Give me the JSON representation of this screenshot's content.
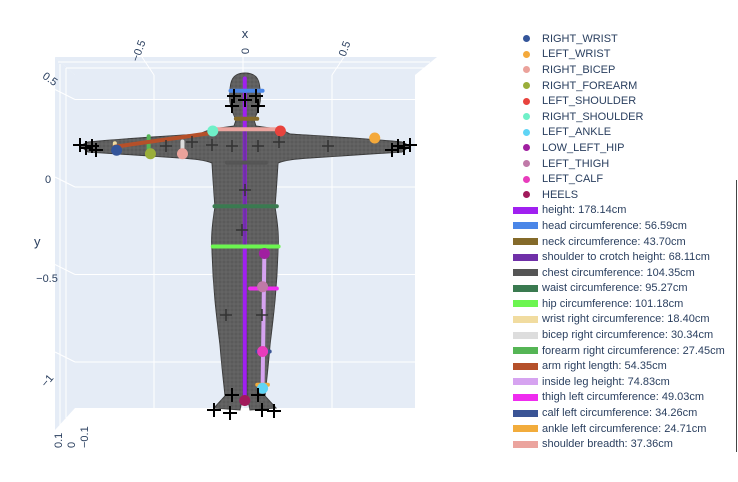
{
  "chart_data": {
    "type": "scatter3d",
    "axes": {
      "x": {
        "title": "x",
        "ticks": [
          "−0.5",
          "0",
          "0.5"
        ],
        "tick_values": [
          -0.5,
          0,
          0.5
        ]
      },
      "y": {
        "title": "y",
        "ticks": [
          "0.5",
          "0",
          "−0.5",
          "−1"
        ],
        "tick_values": [
          0.5,
          0,
          -0.5,
          -1
        ]
      },
      "z": {
        "title": "",
        "ticks": [
          "0.1",
          "0",
          "−0.1"
        ]
      }
    },
    "background_color": "#e5ecf6",
    "grid": true,
    "legend_placement": "right",
    "mesh_color": "#555555",
    "points": [
      {
        "name": "RIGHT_WRIST",
        "color": "#34559a",
        "x": -0.71,
        "y": 0.21
      },
      {
        "name": "LEFT_WRIST",
        "color": "#f4a93b",
        "x": 0.74,
        "y": 0.28
      },
      {
        "name": "RIGHT_BICEP",
        "color": "#eba29b",
        "x": -0.34,
        "y": 0.19
      },
      {
        "name": "RIGHT_FOREARM",
        "color": "#9aae3a",
        "x": -0.52,
        "y": 0.19
      },
      {
        "name": "LEFT_SHOULDER",
        "color": "#e8433d",
        "x": 0.21,
        "y": 0.32
      },
      {
        "name": "RIGHT_SHOULDER",
        "color": "#6ff0c8",
        "x": -0.17,
        "y": 0.32
      },
      {
        "name": "LEFT_ANKLE",
        "color": "#5fd4f5",
        "x": 0.11,
        "y": -1.15
      },
      {
        "name": "LOW_LEFT_HIP",
        "color": "#a01fa0",
        "x": 0.12,
        "y": -0.38
      },
      {
        "name": "LEFT_THIGH",
        "color": "#c079a8",
        "x": 0.11,
        "y": -0.57
      },
      {
        "name": "LEFT_CALF",
        "color": "#e83cbc",
        "x": 0.11,
        "y": -0.94
      },
      {
        "name": "HEELS",
        "color": "#a11a5b",
        "x": 0.01,
        "y": -1.22
      }
    ],
    "measurements": [
      {
        "name": "height: 178.14cm",
        "color": "#a020f0",
        "path": [
          [
            0.01,
            0.62
          ],
          [
            0.01,
            -1.22
          ]
        ]
      },
      {
        "name": "head circumference: 56.59cm",
        "color": "#4a86e8",
        "path": [
          [
            -0.07,
            0.55
          ],
          [
            0.11,
            0.55
          ]
        ]
      },
      {
        "name": "neck circumference: 43.70cm",
        "color": "#846a2a",
        "path": [
          [
            -0.04,
            0.39
          ],
          [
            0.08,
            0.39
          ]
        ]
      },
      {
        "name": "shoulder to crotch height: 68.11cm",
        "color": "#7030a8",
        "path": [
          [
            0.01,
            0.33
          ],
          [
            0.01,
            -0.33
          ]
        ]
      },
      {
        "name": "chest circumference: 104.35cm",
        "color": "#555555",
        "path": [
          [
            -0.09,
            0.14
          ],
          [
            0.13,
            0.14
          ]
        ]
      },
      {
        "name": "waist circumference: 95.27cm",
        "color": "#3a7a50",
        "path": [
          [
            -0.16,
            -0.11
          ],
          [
            0.19,
            -0.11
          ]
        ]
      },
      {
        "name": "hip circumference: 101.18cm",
        "color": "#6cf550",
        "path": [
          [
            -0.17,
            -0.34
          ],
          [
            0.2,
            -0.34
          ]
        ]
      },
      {
        "name": "wrist right circumference: 18.40cm",
        "color": "#f1dca0",
        "path": [
          [
            -0.72,
            0.25
          ],
          [
            -0.72,
            0.2
          ]
        ]
      },
      {
        "name": "bicep right circumference: 30.34cm",
        "color": "#dddddd",
        "path": [
          [
            -0.34,
            0.26
          ],
          [
            -0.34,
            0.18
          ]
        ]
      },
      {
        "name": "forearm right circumference: 27.45cm",
        "color": "#55b555",
        "path": [
          [
            -0.53,
            0.29
          ],
          [
            -0.53,
            0.18
          ]
        ]
      },
      {
        "name": "arm right length: 54.35cm",
        "color": "#b5502a",
        "path": [
          [
            -0.72,
            0.23
          ],
          [
            -0.17,
            0.31
          ]
        ]
      },
      {
        "name": "inside leg height: 74.83cm",
        "color": "#d6a3f0",
        "path": [
          [
            0.12,
            -0.38
          ],
          [
            0.11,
            -1.15
          ]
        ]
      },
      {
        "name": "thigh left circumference: 49.03cm",
        "color": "#ef2cef",
        "path": [
          [
            0.04,
            -0.58
          ],
          [
            0.19,
            -0.58
          ]
        ]
      },
      {
        "name": "calf left circumference: 34.26cm",
        "color": "#3a5495",
        "path": [
          [
            0.08,
            -0.94
          ],
          [
            0.15,
            -0.94
          ]
        ]
      },
      {
        "name": "ankle left circumference: 24.71cm",
        "color": "#f2ac3c",
        "path": [
          [
            0.08,
            -1.13
          ],
          [
            0.14,
            -1.13
          ]
        ]
      },
      {
        "name": "shoulder breadth: 37.36cm",
        "color": "#eba49e",
        "path": [
          [
            -0.17,
            0.33
          ],
          [
            0.21,
            0.33
          ]
        ]
      }
    ]
  }
}
